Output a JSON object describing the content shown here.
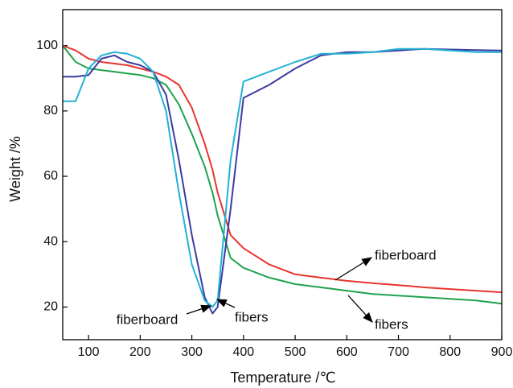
{
  "chart_data": {
    "type": "line",
    "x_label": "Temperature /℃",
    "y_label": "Weight /%",
    "x": [
      50,
      75,
      100,
      125,
      150,
      175,
      200,
      225,
      250,
      275,
      300,
      325,
      340,
      350,
      375,
      400,
      450,
      500,
      550,
      600,
      650,
      700,
      750,
      800,
      850,
      900
    ],
    "series": [
      {
        "color": "#e8352f",
        "values": [
          100,
          98.5,
          96,
          95,
          94.5,
          94,
          93,
          92,
          90.5,
          88,
          81,
          70,
          62,
          55,
          42,
          38,
          33,
          30,
          29,
          28,
          27.3,
          26.7,
          26,
          25.5,
          25,
          24.5
        ]
      },
      {
        "color": "#1ea34c",
        "values": [
          100,
          95,
          93,
          92.5,
          92,
          91.5,
          91,
          90,
          88,
          82,
          73,
          63,
          55,
          48,
          35,
          32,
          29,
          27,
          26,
          25,
          24,
          23.5,
          23,
          22.5,
          22,
          21
        ]
      },
      {
        "color": "#3b3ca0",
        "values": [
          90.5,
          90.5,
          91,
          96,
          97,
          95,
          94,
          92,
          85,
          65,
          42,
          23,
          18,
          20,
          50,
          84,
          88,
          93,
          97,
          98,
          98,
          98.5,
          99,
          98.8,
          98.6,
          98.5
        ]
      },
      {
        "color": "#22b2d2",
        "values": [
          83,
          83,
          93,
          97,
          98,
          97.5,
          96,
          92,
          80,
          55,
          33,
          22,
          20,
          22,
          65,
          89,
          92,
          95,
          97.5,
          97.5,
          98,
          99,
          99,
          98.5,
          98,
          98
        ]
      }
    ],
    "xlim": [
      50,
      900
    ],
    "xticks": [
      100,
      200,
      300,
      400,
      500,
      600,
      700,
      800,
      900
    ],
    "ylim": [
      10,
      111
    ],
    "yticks": [
      20,
      40,
      60,
      80,
      100
    ],
    "annotations": [
      "fiberboard",
      "fibers",
      "fiberboard",
      "fibers"
    ]
  }
}
